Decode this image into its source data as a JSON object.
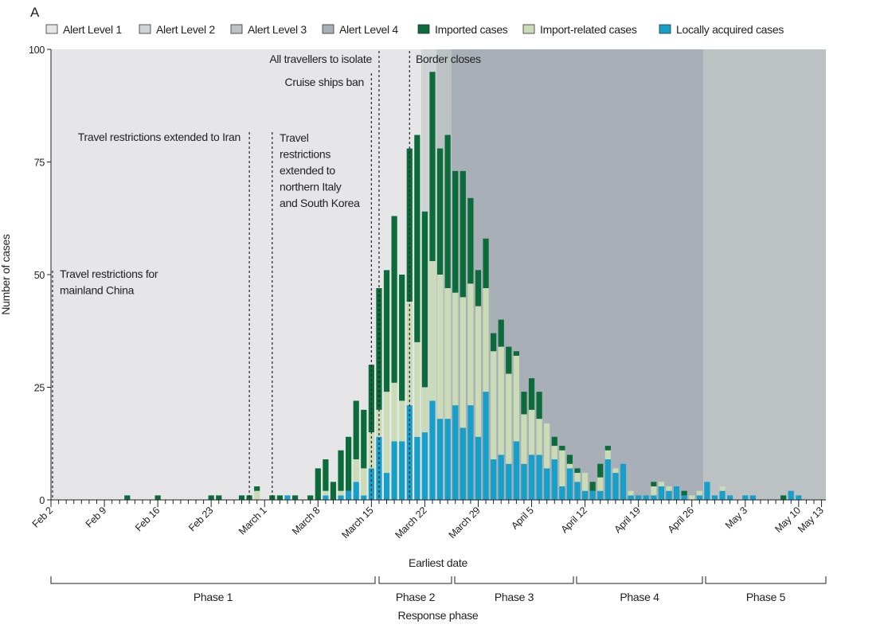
{
  "panel_label": "A",
  "chart_data": {
    "type": "bar",
    "stacked": true,
    "xlabel": "Earliest date",
    "ylabel": "Number of cases",
    "ylim": [
      0,
      100
    ],
    "yticks": [
      0,
      25,
      50,
      75,
      100
    ],
    "xlim": [
      "2020-02-02",
      "2020-05-13"
    ],
    "xtick_labels": [
      {
        "date": "2020-02-02",
        "label": "Feb 2"
      },
      {
        "date": "2020-02-09",
        "label": "Feb 9"
      },
      {
        "date": "2020-02-16",
        "label": "Feb 16"
      },
      {
        "date": "2020-02-23",
        "label": "Feb 23"
      },
      {
        "date": "2020-03-01",
        "label": "March 1"
      },
      {
        "date": "2020-03-08",
        "label": "March 8"
      },
      {
        "date": "2020-03-15",
        "label": "March 15"
      },
      {
        "date": "2020-03-22",
        "label": "March 22"
      },
      {
        "date": "2020-03-29",
        "label": "March 29"
      },
      {
        "date": "2020-04-05",
        "label": "April 5"
      },
      {
        "date": "2020-04-12",
        "label": "April 12"
      },
      {
        "date": "2020-04-19",
        "label": "April 19"
      },
      {
        "date": "2020-04-26",
        "label": "April 26"
      },
      {
        "date": "2020-05-03",
        "label": "May 3"
      },
      {
        "date": "2020-05-10",
        "label": "May 10"
      },
      {
        "date": "2020-05-13",
        "label": "May 13"
      }
    ],
    "grid": false,
    "legend_placement": "top",
    "legend": [
      {
        "label": "Alert Level 1",
        "color": "#e6e6e8"
      },
      {
        "label": "Alert Level 2",
        "color": "#d0d3d6"
      },
      {
        "label": "Alert Level 3",
        "color": "#bcc1c4"
      },
      {
        "label": "Alert Level 4",
        "color": "#a9afb6"
      },
      {
        "label": "Imported cases",
        "color": "#0b6b3a"
      },
      {
        "label": "Import-related cases",
        "color": "#c9dcb5"
      },
      {
        "label": "Locally acquired cases",
        "color": "#169fc9"
      }
    ],
    "alert_levels": [
      {
        "level": 1,
        "from": "2020-02-02",
        "to": "2020-03-21"
      },
      {
        "level": 2,
        "from": "2020-03-21",
        "to": "2020-03-23"
      },
      {
        "level": 3,
        "from": "2020-03-23",
        "to": "2020-03-25"
      },
      {
        "level": 4,
        "from": "2020-03-25",
        "to": "2020-04-27"
      },
      {
        "level": 3,
        "from": "2020-04-27",
        "to": "2020-05-13"
      }
    ],
    "dates": [
      "2020-02-12",
      "2020-02-16",
      "2020-02-23",
      "2020-02-24",
      "2020-02-27",
      "2020-02-28",
      "2020-02-29",
      "2020-03-02",
      "2020-03-03",
      "2020-03-04",
      "2020-03-05",
      "2020-03-07",
      "2020-03-08",
      "2020-03-09",
      "2020-03-10",
      "2020-03-11",
      "2020-03-12",
      "2020-03-13",
      "2020-03-14",
      "2020-03-15",
      "2020-03-16",
      "2020-03-17",
      "2020-03-18",
      "2020-03-19",
      "2020-03-20",
      "2020-03-21",
      "2020-03-22",
      "2020-03-23",
      "2020-03-24",
      "2020-03-25",
      "2020-03-26",
      "2020-03-27",
      "2020-03-28",
      "2020-03-29",
      "2020-03-30",
      "2020-03-31",
      "2020-04-01",
      "2020-04-02",
      "2020-04-03",
      "2020-04-04",
      "2020-04-05",
      "2020-04-06",
      "2020-04-07",
      "2020-04-08",
      "2020-04-09",
      "2020-04-10",
      "2020-04-11",
      "2020-04-12",
      "2020-04-13",
      "2020-04-14",
      "2020-04-15",
      "2020-04-16",
      "2020-04-17",
      "2020-04-18",
      "2020-04-19",
      "2020-04-20",
      "2020-04-21",
      "2020-04-22",
      "2020-04-23",
      "2020-04-24",
      "2020-04-25",
      "2020-04-26",
      "2020-04-27",
      "2020-04-28",
      "2020-04-29",
      "2020-04-30",
      "2020-05-01",
      "2020-05-03",
      "2020-05-04",
      "2020-05-08",
      "2020-05-09",
      "2020-05-10"
    ],
    "series": [
      {
        "name": "Locally acquired cases",
        "values": [
          0,
          0,
          0,
          0,
          0,
          0,
          0,
          0,
          0,
          1,
          0,
          0,
          0,
          1,
          0,
          1,
          2,
          4,
          1,
          7,
          14,
          6,
          13,
          13,
          21,
          14,
          15,
          22,
          18,
          18,
          21,
          16,
          21,
          14,
          24,
          9,
          10,
          8,
          13,
          8,
          10,
          10,
          7,
          9,
          3,
          7,
          4,
          2,
          2,
          2,
          9,
          6,
          8,
          1,
          1,
          1,
          1,
          3,
          2,
          3,
          1,
          0,
          1,
          4,
          1,
          2,
          1,
          1,
          1,
          0,
          2,
          1
        ]
      },
      {
        "name": "Import-related cases",
        "values": [
          0,
          0,
          0,
          0,
          0,
          0,
          2,
          0,
          0,
          0,
          0,
          0,
          0,
          1,
          0,
          1,
          0,
          5,
          6,
          8,
          6,
          18,
          13,
          9,
          23,
          21,
          10,
          31,
          32,
          29,
          25,
          29,
          27,
          29,
          23,
          24,
          24,
          20,
          19,
          11,
          10,
          8,
          10,
          3,
          8,
          1,
          2,
          4,
          0,
          3,
          2,
          1,
          0,
          1,
          0,
          0,
          2,
          1,
          1,
          0,
          0,
          1,
          1,
          0,
          0,
          1,
          0,
          0,
          0,
          0,
          0,
          0
        ]
      },
      {
        "name": "Imported cases",
        "values": [
          1,
          1,
          1,
          1,
          1,
          1,
          1,
          1,
          1,
          0,
          1,
          1,
          7,
          7,
          4,
          9,
          12,
          13,
          13,
          15,
          27,
          27,
          37,
          28,
          34,
          46,
          39,
          42,
          28,
          34,
          27,
          28,
          19,
          8,
          11,
          4,
          6,
          6,
          1,
          5,
          7,
          6,
          0,
          2,
          1,
          2,
          1,
          0,
          2,
          3,
          1,
          0,
          0,
          0,
          0,
          0,
          1,
          0,
          0,
          0,
          1,
          0,
          0,
          0,
          0,
          0,
          0,
          0,
          0,
          1,
          0,
          0
        ]
      }
    ],
    "annotations": [
      {
        "date": "2020-02-02",
        "text": [
          "Travel restrictions for",
          "mainland China"
        ]
      },
      {
        "date": "2020-02-28",
        "text": [
          "Travel restrictions extended to Iran"
        ]
      },
      {
        "date": "2020-03-02",
        "text": [
          "Travel",
          "restrictions",
          "extended to",
          "northern Italy",
          "and South Korea"
        ]
      },
      {
        "date": "2020-03-15",
        "text": [
          "Cruise ships ban"
        ]
      },
      {
        "date": "2020-03-16",
        "text": [
          "All travellers to isolate"
        ]
      },
      {
        "date": "2020-03-20",
        "text": [
          "Border closes"
        ]
      }
    ],
    "phase_axis_label": "Response phase",
    "phases": [
      {
        "label": "Phase 1",
        "from": "2020-02-02",
        "to": "2020-03-15"
      },
      {
        "label": "Phase 2",
        "from": "2020-03-16",
        "to": "2020-03-25"
      },
      {
        "label": "Phase 3",
        "from": "2020-03-25",
        "to": "2020-04-10"
      },
      {
        "label": "Phase 4",
        "from": "2020-04-11",
        "to": "2020-04-27"
      },
      {
        "label": "Phase 5",
        "from": "2020-04-27",
        "to": "2020-05-13"
      }
    ]
  }
}
